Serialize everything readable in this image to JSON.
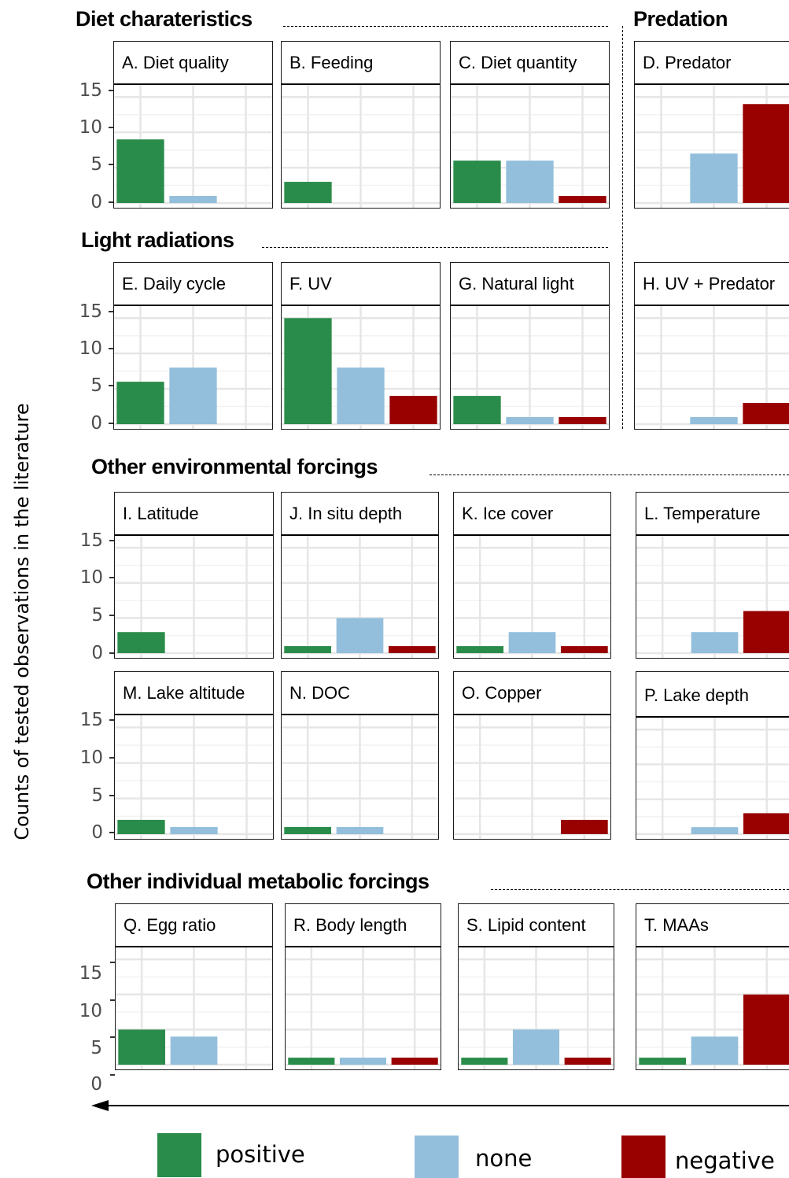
{
  "colors": {
    "positive": "#2a8c4a",
    "none": "#93bfdc",
    "negative": "#990000"
  },
  "y_axis_title": "Counts of tested observations in the literature",
  "sections": {
    "diet": "Diet charateristics",
    "predation": "Predation",
    "light": "Light radiations",
    "environment": "Other environmental forcings",
    "metabolic": "Other individual metabolic forcings"
  },
  "legend": [
    {
      "key": "positive",
      "label": "positive"
    },
    {
      "key": "none",
      "label": "none"
    },
    {
      "key": "negative",
      "label": "negative"
    }
  ],
  "chart_data": {
    "type": "bar",
    "categories": [
      "positive",
      "none",
      "negative"
    ],
    "ylim": [
      0,
      15
    ],
    "yticks": [
      0,
      5,
      10,
      15
    ],
    "grid": true,
    "legend_position": "bottom",
    "panels": [
      {
        "id": "A",
        "label": "A. Diet quality",
        "values": [
          9,
          1,
          0
        ]
      },
      {
        "id": "B",
        "label": "B. Feeding",
        "values": [
          3,
          0,
          0
        ]
      },
      {
        "id": "C",
        "label": "C. Diet quantity",
        "values": [
          6,
          6,
          1
        ]
      },
      {
        "id": "D",
        "label": "D. Predator",
        "values": [
          0,
          7,
          14
        ]
      },
      {
        "id": "E",
        "label": "E. Daily cycle",
        "values": [
          6,
          8,
          0
        ]
      },
      {
        "id": "F",
        "label": "F. UV",
        "values": [
          15,
          8,
          4
        ]
      },
      {
        "id": "G",
        "label": "G. Natural light",
        "values": [
          4,
          1,
          1
        ]
      },
      {
        "id": "H",
        "label": "H. UV + Predator",
        "values": [
          0,
          1,
          3
        ]
      },
      {
        "id": "I",
        "label": "I. Latitude",
        "values": [
          3,
          0,
          0
        ]
      },
      {
        "id": "J",
        "label": "J. In situ depth",
        "values": [
          1,
          5,
          1
        ]
      },
      {
        "id": "K",
        "label": "K. Ice cover",
        "values": [
          1,
          3,
          1
        ]
      },
      {
        "id": "L",
        "label": "L. Temperature",
        "values": [
          0,
          3,
          6
        ]
      },
      {
        "id": "M",
        "label": "M. Lake altitude",
        "values": [
          2,
          1,
          0
        ]
      },
      {
        "id": "N",
        "label": "N. DOC",
        "values": [
          1,
          1,
          0
        ]
      },
      {
        "id": "O",
        "label": "O. Copper",
        "values": [
          0,
          0,
          2
        ]
      },
      {
        "id": "P",
        "label": "P. Lake depth",
        "values": [
          0,
          1,
          3
        ]
      },
      {
        "id": "Q",
        "label": "Q. Egg ratio",
        "values": [
          5,
          4,
          0
        ]
      },
      {
        "id": "R",
        "label": "R. Body length",
        "values": [
          1,
          1,
          1
        ]
      },
      {
        "id": "S",
        "label": "S. Lipid content",
        "values": [
          1,
          5,
          1
        ]
      },
      {
        "id": "T",
        "label": "T. MAAs",
        "values": [
          1,
          4,
          10
        ]
      }
    ]
  }
}
